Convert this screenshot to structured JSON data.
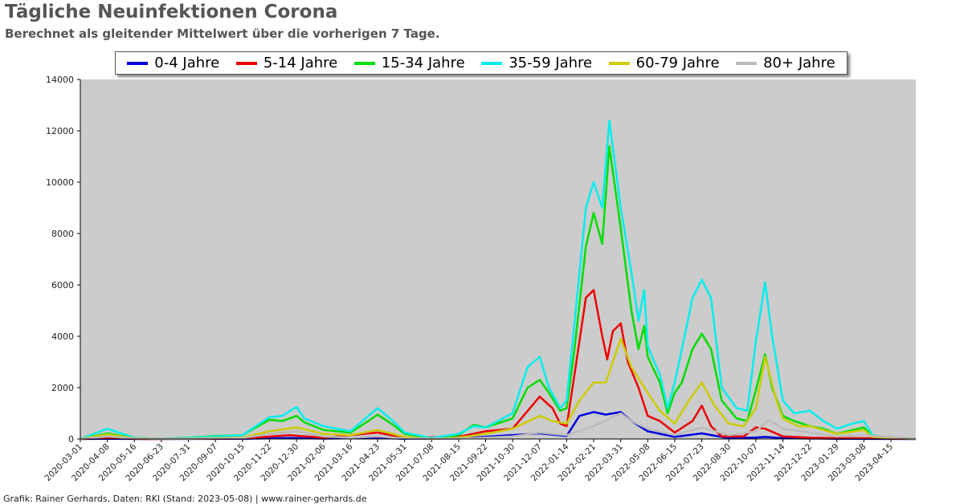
{
  "title": "Tägliche Neuinfektionen Corona",
  "subtitle": "Berechnet als gleitender Mittelwert über die vorherigen 7 Tage.",
  "credit": "Grafik: Rainer Gerhards, Daten: RKI (Stand: 2023-05-08) | www.rainer-gerhards.de",
  "chart_data": {
    "type": "line",
    "ylim": [
      0,
      14000
    ],
    "yticks": [
      0,
      2000,
      4000,
      6000,
      8000,
      10000,
      12000,
      14000
    ],
    "xlim": [
      "2020-03-01",
      "2023-05-20"
    ],
    "xticks": [
      "2020-03-01",
      "2020-04-08",
      "2020-05-16",
      "2020-06-23",
      "2020-07-31",
      "2020-09-07",
      "2020-10-15",
      "2020-11-22",
      "2020-12-30",
      "2021-02-06",
      "2021-03-16",
      "2021-04-23",
      "2021-05-31",
      "2021-07-08",
      "2021-08-15",
      "2021-09-22",
      "2021-10-30",
      "2021-12-07",
      "2022-01-14",
      "2022-02-21",
      "2022-03-31",
      "2022-05-08",
      "2022-06-15",
      "2022-07-23",
      "2022-08-30",
      "2022-10-07",
      "2022-11-14",
      "2022-12-22",
      "2023-01-29",
      "2023-03-08",
      "2023-04-15"
    ],
    "grid": false,
    "legend_position": "top",
    "plot_background": "#cccccc",
    "series": [
      {
        "name": "0-4 Jahre",
        "color": "#0000dd",
        "points": [
          [
            "2020-03-01",
            0
          ],
          [
            "2020-04-08",
            10
          ],
          [
            "2020-06-01",
            0
          ],
          [
            "2020-10-15",
            10
          ],
          [
            "2020-12-20",
            40
          ],
          [
            "2021-02-06",
            15
          ],
          [
            "2021-04-23",
            40
          ],
          [
            "2021-05-31",
            10
          ],
          [
            "2021-08-15",
            20
          ],
          [
            "2021-12-07",
            220
          ],
          [
            "2022-01-14",
            120
          ],
          [
            "2022-02-01",
            900
          ],
          [
            "2022-02-21",
            1050
          ],
          [
            "2022-03-10",
            950
          ],
          [
            "2022-03-31",
            1050
          ],
          [
            "2022-04-15",
            700
          ],
          [
            "2022-05-08",
            300
          ],
          [
            "2022-06-15",
            80
          ],
          [
            "2022-07-23",
            220
          ],
          [
            "2022-08-30",
            30
          ],
          [
            "2022-10-07",
            60
          ],
          [
            "2022-10-20",
            80
          ],
          [
            "2022-11-14",
            30
          ],
          [
            "2023-01-29",
            10
          ],
          [
            "2023-05-20",
            0
          ]
        ]
      },
      {
        "name": "5-14 Jahre",
        "color": "#ee0000",
        "points": [
          [
            "2020-03-01",
            0
          ],
          [
            "2020-04-08",
            40
          ],
          [
            "2020-06-01",
            0
          ],
          [
            "2020-10-15",
            20
          ],
          [
            "2020-12-20",
            150
          ],
          [
            "2021-02-06",
            50
          ],
          [
            "2021-04-23",
            250
          ],
          [
            "2021-05-31",
            50
          ],
          [
            "2021-08-15",
            80
          ],
          [
            "2021-09-22",
            300
          ],
          [
            "2021-10-30",
            400
          ],
          [
            "2021-12-07",
            1650
          ],
          [
            "2021-12-25",
            1200
          ],
          [
            "2022-01-05",
            600
          ],
          [
            "2022-01-14",
            500
          ],
          [
            "2022-01-25",
            2500
          ],
          [
            "2022-02-10",
            5500
          ],
          [
            "2022-02-21",
            5800
          ],
          [
            "2022-03-05",
            4000
          ],
          [
            "2022-03-12",
            3100
          ],
          [
            "2022-03-20",
            4200
          ],
          [
            "2022-03-31",
            4500
          ],
          [
            "2022-04-10",
            3000
          ],
          [
            "2022-04-25",
            2000
          ],
          [
            "2022-05-08",
            900
          ],
          [
            "2022-05-25",
            700
          ],
          [
            "2022-06-15",
            250
          ],
          [
            "2022-07-10",
            700
          ],
          [
            "2022-07-23",
            1300
          ],
          [
            "2022-08-05",
            500
          ],
          [
            "2022-08-20",
            100
          ],
          [
            "2022-09-20",
            100
          ],
          [
            "2022-10-07",
            450
          ],
          [
            "2022-10-20",
            400
          ],
          [
            "2022-11-14",
            100
          ],
          [
            "2022-12-22",
            50
          ],
          [
            "2023-01-29",
            30
          ],
          [
            "2023-03-08",
            30
          ],
          [
            "2023-05-20",
            0
          ]
        ]
      },
      {
        "name": "15-34 Jahre",
        "color": "#00dd00",
        "points": [
          [
            "2020-03-01",
            0
          ],
          [
            "2020-04-08",
            220
          ],
          [
            "2020-05-16",
            40
          ],
          [
            "2020-06-23",
            10
          ],
          [
            "2020-07-31",
            50
          ],
          [
            "2020-09-07",
            120
          ],
          [
            "2020-10-15",
            150
          ],
          [
            "2020-11-22",
            750
          ],
          [
            "2020-12-10",
            700
          ],
          [
            "2020-12-30",
            900
          ],
          [
            "2021-01-10",
            650
          ],
          [
            "2021-02-06",
            350
          ],
          [
            "2021-03-16",
            250
          ],
          [
            "2021-04-10",
            700
          ],
          [
            "2021-04-23",
            950
          ],
          [
            "2021-05-15",
            550
          ],
          [
            "2021-05-31",
            200
          ],
          [
            "2021-07-08",
            30
          ],
          [
            "2021-08-15",
            150
          ],
          [
            "2021-09-05",
            550
          ],
          [
            "2021-09-22",
            450
          ],
          [
            "2021-10-30",
            800
          ],
          [
            "2021-11-20",
            2000
          ],
          [
            "2021-12-07",
            2300
          ],
          [
            "2021-12-20",
            1800
          ],
          [
            "2022-01-05",
            1100
          ],
          [
            "2022-01-14",
            1200
          ],
          [
            "2022-01-25",
            3500
          ],
          [
            "2022-02-10",
            7500
          ],
          [
            "2022-02-21",
            8800
          ],
          [
            "2022-03-05",
            7600
          ],
          [
            "2022-03-15",
            11400
          ],
          [
            "2022-03-31",
            8200
          ],
          [
            "2022-04-15",
            5000
          ],
          [
            "2022-04-25",
            3500
          ],
          [
            "2022-05-03",
            4400
          ],
          [
            "2022-05-08",
            3200
          ],
          [
            "2022-05-25",
            2200
          ],
          [
            "2022-06-05",
            1000
          ],
          [
            "2022-06-15",
            1800
          ],
          [
            "2022-06-25",
            2200
          ],
          [
            "2022-07-10",
            3500
          ],
          [
            "2022-07-23",
            4100
          ],
          [
            "2022-08-05",
            3500
          ],
          [
            "2022-08-20",
            1500
          ],
          [
            "2022-09-10",
            800
          ],
          [
            "2022-09-25",
            700
          ],
          [
            "2022-10-07",
            1900
          ],
          [
            "2022-10-20",
            3300
          ],
          [
            "2022-10-30",
            2000
          ],
          [
            "2022-11-14",
            900
          ],
          [
            "2022-11-30",
            700
          ],
          [
            "2022-12-22",
            500
          ],
          [
            "2023-01-10",
            400
          ],
          [
            "2023-01-29",
            200
          ],
          [
            "2023-02-20",
            350
          ],
          [
            "2023-03-08",
            450
          ],
          [
            "2023-03-20",
            100
          ],
          [
            "2023-04-15",
            30
          ],
          [
            "2023-05-20",
            10
          ]
        ]
      },
      {
        "name": "35-59 Jahre",
        "color": "#00eeee",
        "points": [
          [
            "2020-03-01",
            0
          ],
          [
            "2020-04-08",
            400
          ],
          [
            "2020-05-16",
            50
          ],
          [
            "2020-06-23",
            10
          ],
          [
            "2020-07-31",
            50
          ],
          [
            "2020-09-07",
            100
          ],
          [
            "2020-10-15",
            150
          ],
          [
            "2020-11-22",
            850
          ],
          [
            "2020-12-10",
            900
          ],
          [
            "2020-12-30",
            1250
          ],
          [
            "2021-01-10",
            800
          ],
          [
            "2021-02-06",
            500
          ],
          [
            "2021-03-16",
            300
          ],
          [
            "2021-04-10",
            900
          ],
          [
            "2021-04-23",
            1200
          ],
          [
            "2021-05-15",
            700
          ],
          [
            "2021-05-31",
            250
          ],
          [
            "2021-07-08",
            40
          ],
          [
            "2021-08-15",
            200
          ],
          [
            "2021-09-05",
            500
          ],
          [
            "2021-09-22",
            450
          ],
          [
            "2021-10-30",
            1000
          ],
          [
            "2021-11-20",
            2800
          ],
          [
            "2021-12-07",
            3200
          ],
          [
            "2021-12-20",
            2000
          ],
          [
            "2022-01-05",
            1200
          ],
          [
            "2022-01-14",
            1500
          ],
          [
            "2022-01-25",
            4500
          ],
          [
            "2022-02-10",
            9000
          ],
          [
            "2022-02-21",
            10000
          ],
          [
            "2022-03-05",
            9000
          ],
          [
            "2022-03-15",
            12400
          ],
          [
            "2022-03-31",
            9000
          ],
          [
            "2022-04-15",
            6500
          ],
          [
            "2022-04-25",
            4600
          ],
          [
            "2022-05-03",
            5800
          ],
          [
            "2022-05-08",
            3600
          ],
          [
            "2022-05-25",
            2500
          ],
          [
            "2022-06-05",
            1200
          ],
          [
            "2022-06-15",
            2200
          ],
          [
            "2022-06-25",
            3500
          ],
          [
            "2022-07-10",
            5500
          ],
          [
            "2022-07-23",
            6200
          ],
          [
            "2022-08-05",
            5500
          ],
          [
            "2022-08-20",
            2000
          ],
          [
            "2022-09-10",
            1200
          ],
          [
            "2022-09-25",
            1100
          ],
          [
            "2022-10-07",
            3800
          ],
          [
            "2022-10-20",
            6100
          ],
          [
            "2022-10-30",
            4000
          ],
          [
            "2022-11-14",
            1500
          ],
          [
            "2022-11-30",
            1000
          ],
          [
            "2022-12-22",
            1100
          ],
          [
            "2023-01-10",
            700
          ],
          [
            "2023-01-29",
            400
          ],
          [
            "2023-02-20",
            600
          ],
          [
            "2023-03-08",
            700
          ],
          [
            "2023-03-20",
            150
          ],
          [
            "2023-04-15",
            40
          ],
          [
            "2023-05-20",
            10
          ]
        ]
      },
      {
        "name": "60-79 Jahre",
        "color": "#cccc00",
        "points": [
          [
            "2020-03-01",
            0
          ],
          [
            "2020-04-08",
            180
          ],
          [
            "2020-05-16",
            30
          ],
          [
            "2020-06-23",
            5
          ],
          [
            "2020-07-31",
            20
          ],
          [
            "2020-09-07",
            40
          ],
          [
            "2020-10-15",
            60
          ],
          [
            "2020-11-22",
            300
          ],
          [
            "2020-12-30",
            450
          ],
          [
            "2021-02-06",
            200
          ],
          [
            "2021-03-16",
            150
          ],
          [
            "2021-04-23",
            350
          ],
          [
            "2021-05-31",
            80
          ],
          [
            "2021-07-08",
            10
          ],
          [
            "2021-08-15",
            50
          ],
          [
            "2021-09-22",
            200
          ],
          [
            "2021-10-30",
            400
          ],
          [
            "2021-12-07",
            900
          ],
          [
            "2021-12-25",
            700
          ],
          [
            "2022-01-14",
            600
          ],
          [
            "2022-02-01",
            1500
          ],
          [
            "2022-02-21",
            2200
          ],
          [
            "2022-03-10",
            2200
          ],
          [
            "2022-03-31",
            3900
          ],
          [
            "2022-04-15",
            2800
          ],
          [
            "2022-05-08",
            1800
          ],
          [
            "2022-05-25",
            1100
          ],
          [
            "2022-06-15",
            600
          ],
          [
            "2022-07-05",
            1500
          ],
          [
            "2022-07-23",
            2200
          ],
          [
            "2022-08-10",
            1300
          ],
          [
            "2022-08-30",
            600
          ],
          [
            "2022-09-20",
            500
          ],
          [
            "2022-10-07",
            1200
          ],
          [
            "2022-10-20",
            3200
          ],
          [
            "2022-11-05",
            1500
          ],
          [
            "2022-11-14",
            800
          ],
          [
            "2022-12-05",
            500
          ],
          [
            "2022-12-22",
            500
          ],
          [
            "2023-01-29",
            200
          ],
          [
            "2023-03-08",
            350
          ],
          [
            "2023-03-20",
            80
          ],
          [
            "2023-05-20",
            5
          ]
        ]
      },
      {
        "name": "80+ Jahre",
        "color": "#bbbbbb",
        "points": [
          [
            "2020-03-01",
            0
          ],
          [
            "2020-04-08",
            100
          ],
          [
            "2020-05-16",
            20
          ],
          [
            "2020-06-23",
            5
          ],
          [
            "2020-07-31",
            10
          ],
          [
            "2020-09-07",
            20
          ],
          [
            "2020-10-15",
            40
          ],
          [
            "2020-11-22",
            200
          ],
          [
            "2020-12-30",
            300
          ],
          [
            "2021-02-06",
            100
          ],
          [
            "2021-03-16",
            50
          ],
          [
            "2021-04-23",
            100
          ],
          [
            "2021-05-31",
            20
          ],
          [
            "2021-08-15",
            15
          ],
          [
            "2021-09-22",
            50
          ],
          [
            "2021-10-30",
            100
          ],
          [
            "2021-12-07",
            250
          ],
          [
            "2022-01-14",
            150
          ],
          [
            "2022-02-21",
            500
          ],
          [
            "2022-03-31",
            1000
          ],
          [
            "2022-04-15",
            700
          ],
          [
            "2022-05-08",
            400
          ],
          [
            "2022-06-15",
            150
          ],
          [
            "2022-07-23",
            450
          ],
          [
            "2022-08-30",
            150
          ],
          [
            "2022-10-07",
            300
          ],
          [
            "2022-10-25",
            750
          ],
          [
            "2022-11-14",
            400
          ],
          [
            "2022-12-22",
            250
          ],
          [
            "2023-01-29",
            100
          ],
          [
            "2023-03-08",
            150
          ],
          [
            "2023-05-20",
            5
          ]
        ]
      }
    ]
  }
}
